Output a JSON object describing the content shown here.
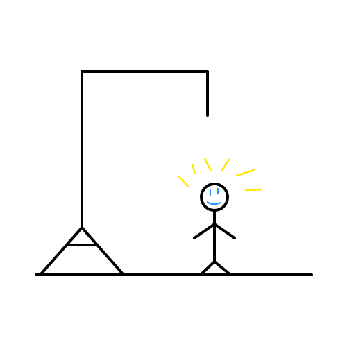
{
  "scene": {
    "background_color": "#ffffff",
    "line_color": "#000000",
    "shine_color": "#ffe600",
    "face_color": "#1e90ff",
    "figure_state": "free",
    "figure_expression": "smile"
  }
}
